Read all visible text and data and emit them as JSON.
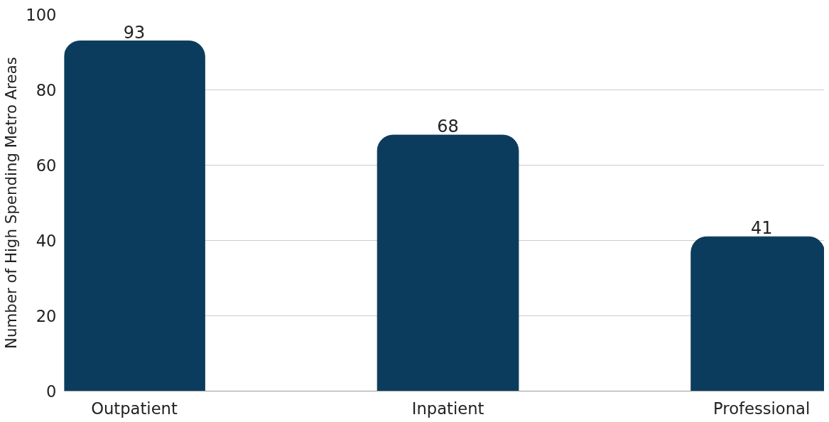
{
  "chart_data": {
    "type": "bar",
    "ylabel": "Number of High Spending Metro Areas",
    "categories": [
      "Outpatient",
      "Inpatient",
      "Professional"
    ],
    "values": [
      93,
      68,
      41
    ],
    "color": "#0b3c5d",
    "ylim": [
      0,
      100
    ],
    "yticks": [
      0,
      20,
      40,
      60,
      80,
      100
    ],
    "grid": "y",
    "data_labels": true
  }
}
